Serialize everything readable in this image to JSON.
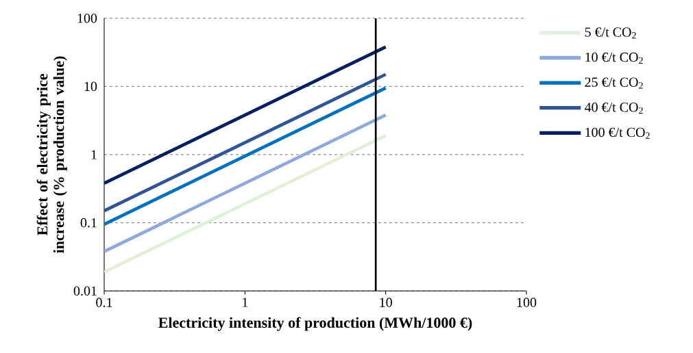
{
  "chart_data": {
    "type": "line",
    "xlabel": "Electricity intensity of production (MWh/1000 €)",
    "ylabel": "Effect of electricity price increase (% production value)",
    "x": [
      0.1,
      10
    ],
    "log": "xy",
    "grid": "y",
    "legend": "right",
    "marker": "none",
    "line_style": "solid",
    "xlim": [
      0.1,
      100
    ],
    "xticks": [
      0.1,
      1,
      10,
      100
    ],
    "ylim": [
      0.01,
      100
    ],
    "yticks": [
      0.01,
      0.1,
      1,
      10,
      100
    ],
    "series": [
      {
        "name": "5 €/t CO$_{2}$",
        "color": "#e2efd9",
        "values": [
          0.019,
          1.9
        ]
      },
      {
        "name": "10 €/t CO$_{2}$",
        "color": "#8eaadb",
        "values": [
          0.038,
          3.8
        ]
      },
      {
        "name": "25 €/t CO$_{2}$",
        "color": "#0070c0",
        "values": [
          0.095,
          9.5
        ]
      },
      {
        "name": "40 €/t CO$_{2}$",
        "color": "#2f5597",
        "values": [
          0.15,
          15
        ]
      },
      {
        "name": "100 €/t CO$_{2}$",
        "color": "#002060",
        "values": [
          0.38,
          38
        ]
      }
    ],
    "ref_lines": [
      {
        "axis": "x",
        "value": 8.5,
        "color": "#000000"
      }
    ]
  }
}
